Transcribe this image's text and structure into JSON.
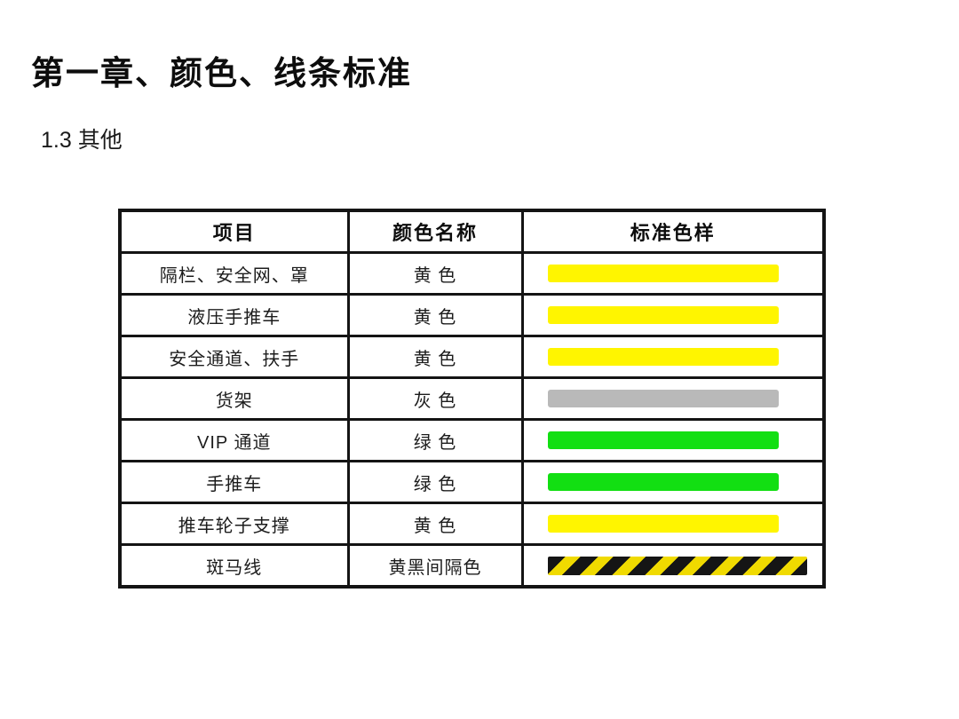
{
  "page": {
    "title": "第一章、颜色、线条标准",
    "subtitle": "1.3 其他"
  },
  "table": {
    "columns": [
      "项目",
      "颜色名称",
      "标准色样"
    ],
    "rows": [
      {
        "item": "隔栏、安全网、罩",
        "color_name": "黄 色",
        "swatch": "yellow"
      },
      {
        "item": "液压手推车",
        "color_name": "黄 色",
        "swatch": "yellow"
      },
      {
        "item": "安全通道、扶手",
        "color_name": "黄 色",
        "swatch": "yellow"
      },
      {
        "item": "货架",
        "color_name": "灰 色",
        "swatch": "gray"
      },
      {
        "item": "VIP 通道",
        "color_name": "绿 色",
        "swatch": "green"
      },
      {
        "item": "手推车",
        "color_name": "绿 色",
        "swatch": "green"
      },
      {
        "item": "推车轮子支撑",
        "color_name": "黄 色",
        "swatch": "yellow"
      },
      {
        "item": "斑马线",
        "color_name": "黄黑间隔色",
        "swatch": "yellow-black-stripes"
      }
    ],
    "swatch_colors": {
      "yellow": "#FFF500",
      "gray": "#B9B9B9",
      "green": "#12DF12",
      "stripe_black": "#151515",
      "stripe_yellow": "#F0DA00"
    }
  }
}
